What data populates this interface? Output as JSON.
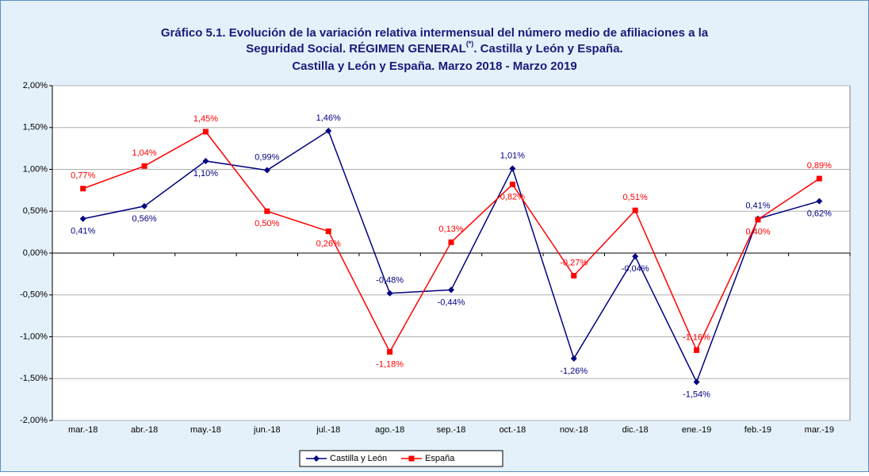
{
  "chart_data": {
    "type": "line",
    "title": {
      "line1": "Gráfico 5.1. Evolución de la variación relativa intermensual del número medio de afiliaciones a la",
      "line2": "Seguridad Social. RÉGIMEN GENERAL",
      "superscript": "(*)",
      "line2_end": ". Castilla y León y España.",
      "line3": "Castilla y León y España. Marzo 2018 - Marzo 2019"
    },
    "categories": [
      "mar.-18",
      "abr.-18",
      "may.-18",
      "jun.-18",
      "jul.-18",
      "ago.-18",
      "sep.-18",
      "oct.-18",
      "nov.-18",
      "dic.-18",
      "ene.-19",
      "feb.-19",
      "mar.-19"
    ],
    "series": [
      {
        "name": "Castilla y León",
        "color": "#000080",
        "marker": "diamond",
        "values": [
          0.41,
          0.56,
          1.1,
          0.99,
          1.46,
          -0.48,
          -0.44,
          1.01,
          -1.26,
          -0.04,
          -1.54,
          0.41,
          0.62
        ],
        "value_labels": [
          "0,41%",
          "0,56%",
          "1,10%",
          "0,99%",
          "1,46%",
          "-0,48%",
          "-0,44%",
          "1,01%",
          "-1,26%",
          "-0,04%",
          "-1,54%",
          "0,41%",
          "0,62%"
        ]
      },
      {
        "name": "España",
        "color": "#ff0000",
        "marker": "square",
        "values": [
          0.77,
          1.04,
          1.45,
          0.5,
          0.26,
          -1.18,
          0.13,
          0.82,
          -0.27,
          0.51,
          -1.16,
          0.4,
          0.89
        ],
        "value_labels": [
          "0,77%",
          "1,04%",
          "1,45%",
          "0,50%",
          "0,26%",
          "-1,18%",
          "0,13%",
          "0,82%",
          "-0,27%",
          "0,51%",
          "-1,16%",
          "0,40%",
          "0,89%"
        ]
      }
    ],
    "ylim": [
      -2,
      2
    ],
    "yticks": [
      {
        "value": -2,
        "label": "-2,00%"
      },
      {
        "value": -1.5,
        "label": "-1,50%"
      },
      {
        "value": -1,
        "label": "-1,00%"
      },
      {
        "value": -0.5,
        "label": "-0,50%"
      },
      {
        "value": 0,
        "label": "0,00%"
      },
      {
        "value": 0.5,
        "label": "0,50%"
      },
      {
        "value": 1,
        "label": "1,00%"
      },
      {
        "value": 1.5,
        "label": "1,50%"
      },
      {
        "value": 2,
        "label": "2,00%"
      }
    ],
    "grid": true,
    "legend": "bottom"
  }
}
